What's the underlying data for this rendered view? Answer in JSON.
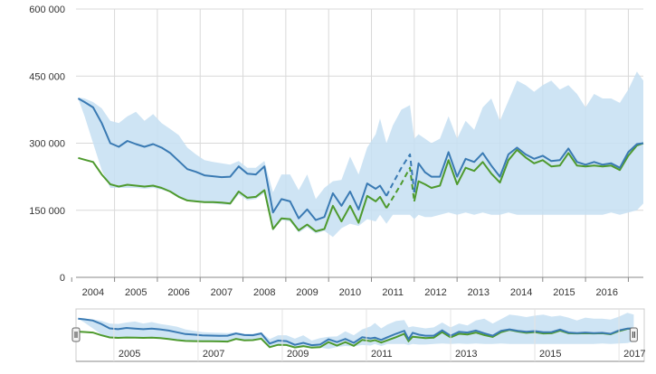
{
  "chart_data": {
    "type": "line",
    "title": "",
    "xlabel": "",
    "ylabel": "",
    "ylim": [
      0,
      600000
    ],
    "xlim": [
      2003.6,
      2016.85
    ],
    "y_ticks": [
      0,
      150000,
      300000,
      450000,
      600000
    ],
    "y_tick_labels": [
      "0",
      "150 000",
      "300 000",
      "450 000",
      "600 000"
    ],
    "x_ticks": [
      2004,
      2005,
      2006,
      2007,
      2008,
      2009,
      2010,
      2011,
      2012,
      2013,
      2014,
      2015,
      2016
    ],
    "x_tick_labels": [
      "2004",
      "2005",
      "2006",
      "2007",
      "2008",
      "2009",
      "2010",
      "2011",
      "2012",
      "2013",
      "2014",
      "2015",
      "2016"
    ],
    "grid": true,
    "legend": "none",
    "colors": {
      "upper_line": "#3a7ab3",
      "lower_line": "#4e9a2e",
      "band": "#c6dff2",
      "grid": "#d9d9d9",
      "axis": "#888888"
    },
    "dashed_range": [
      2010.7,
      2011.45
    ],
    "series": [
      {
        "x": [
          2003.65,
          2003.8,
          2004.0,
          2004.2,
          2004.4,
          2004.6,
          2004.8,
          2005.0,
          2005.2,
          2005.4,
          2005.6,
          2005.8,
          2006.0,
          2006.2,
          2006.4,
          2006.6,
          2006.8,
          2007.0,
          2007.2,
          2007.4,
          2007.6,
          2007.8,
          2008.0,
          2008.2,
          2008.4,
          2008.6,
          2008.8,
          2009.0,
          2009.2,
          2009.4,
          2009.6,
          2009.8,
          2010.0,
          2010.2,
          2010.4,
          2010.6,
          2010.7,
          2010.85,
          2011.0,
          2011.2,
          2011.4,
          2011.5,
          2011.6,
          2011.75,
          2011.9,
          2012.1,
          2012.3,
          2012.5,
          2012.7,
          2012.9,
          2013.1,
          2013.3,
          2013.5,
          2013.7,
          2013.9,
          2014.1,
          2014.3,
          2014.5,
          2014.7,
          2014.9,
          2015.1,
          2015.3,
          2015.5,
          2015.7,
          2015.9,
          2016.1,
          2016.3,
          2016.5,
          2016.7,
          2016.85
        ],
        "values": [
          400000,
          392000,
          380000,
          345000,
          300000,
          292000,
          305000,
          298000,
          292000,
          298000,
          290000,
          278000,
          260000,
          242000,
          236000,
          228000,
          226000,
          224000,
          225000,
          248000,
          232000,
          230000,
          248000,
          145000,
          175000,
          170000,
          132000,
          152000,
          128000,
          135000,
          188000,
          160000,
          192000,
          152000,
          210000,
          198000,
          205000,
          182000,
          210000,
          245000,
          275000,
          190000,
          255000,
          235000,
          225000,
          225000,
          280000,
          225000,
          265000,
          258000,
          278000,
          250000,
          225000,
          275000,
          290000,
          275000,
          265000,
          272000,
          260000,
          262000,
          288000,
          258000,
          252000,
          258000,
          252000,
          255000,
          245000,
          280000,
          298000,
          300000
        ]
      },
      {
        "x": [
          2003.65,
          2003.8,
          2004.0,
          2004.2,
          2004.4,
          2004.6,
          2004.8,
          2005.0,
          2005.2,
          2005.4,
          2005.6,
          2005.8,
          2006.0,
          2006.2,
          2006.4,
          2006.6,
          2006.8,
          2007.0,
          2007.2,
          2007.4,
          2007.6,
          2007.8,
          2008.0,
          2008.2,
          2008.4,
          2008.6,
          2008.8,
          2009.0,
          2009.2,
          2009.4,
          2009.6,
          2009.8,
          2010.0,
          2010.2,
          2010.4,
          2010.6,
          2010.7,
          2010.85,
          2011.0,
          2011.2,
          2011.4,
          2011.5,
          2011.6,
          2011.75,
          2011.9,
          2012.1,
          2012.3,
          2012.5,
          2012.7,
          2012.9,
          2013.1,
          2013.3,
          2013.5,
          2013.7,
          2013.9,
          2014.1,
          2014.3,
          2014.5,
          2014.7,
          2014.9,
          2015.1,
          2015.3,
          2015.5,
          2015.7,
          2015.9,
          2016.1,
          2016.3,
          2016.5,
          2016.7,
          2016.85
        ],
        "values": [
          267000,
          263000,
          258000,
          230000,
          208000,
          203000,
          207000,
          205000,
          203000,
          205000,
          200000,
          192000,
          180000,
          172000,
          170000,
          168000,
          168000,
          167000,
          165000,
          192000,
          178000,
          180000,
          195000,
          108000,
          132000,
          130000,
          105000,
          118000,
          103000,
          108000,
          160000,
          125000,
          160000,
          122000,
          182000,
          170000,
          180000,
          155000,
          178000,
          210000,
          245000,
          170000,
          215000,
          208000,
          200000,
          205000,
          262000,
          208000,
          245000,
          238000,
          258000,
          232000,
          212000,
          262000,
          285000,
          268000,
          255000,
          262000,
          248000,
          250000,
          278000,
          250000,
          248000,
          250000,
          248000,
          250000,
          240000,
          272000,
          295000,
          300000
        ]
      }
    ],
    "band": {
      "x": [
        2003.65,
        2003.8,
        2004.0,
        2004.2,
        2004.4,
        2004.6,
        2004.8,
        2005.0,
        2005.2,
        2005.4,
        2005.6,
        2005.8,
        2006.0,
        2006.2,
        2006.4,
        2006.6,
        2006.8,
        2007.0,
        2007.2,
        2007.4,
        2007.6,
        2007.8,
        2008.0,
        2008.2,
        2008.4,
        2008.6,
        2008.8,
        2009.0,
        2009.2,
        2009.4,
        2009.6,
        2009.8,
        2010.0,
        2010.2,
        2010.4,
        2010.6,
        2010.7,
        2010.85,
        2011.0,
        2011.2,
        2011.4,
        2011.5,
        2011.6,
        2011.75,
        2011.9,
        2012.1,
        2012.3,
        2012.5,
        2012.7,
        2012.9,
        2013.1,
        2013.3,
        2013.5,
        2013.7,
        2013.9,
        2014.1,
        2014.3,
        2014.5,
        2014.7,
        2014.9,
        2015.1,
        2015.3,
        2015.5,
        2015.7,
        2015.9,
        2016.1,
        2016.3,
        2016.5,
        2016.7,
        2016.85
      ],
      "high": [
        402000,
        400000,
        392000,
        378000,
        350000,
        345000,
        360000,
        370000,
        350000,
        365000,
        345000,
        332000,
        318000,
        290000,
        275000,
        262000,
        258000,
        255000,
        252000,
        260000,
        245000,
        245000,
        260000,
        190000,
        230000,
        230000,
        195000,
        230000,
        175000,
        200000,
        215000,
        218000,
        270000,
        230000,
        290000,
        320000,
        355000,
        300000,
        340000,
        375000,
        385000,
        310000,
        320000,
        310000,
        300000,
        310000,
        360000,
        310000,
        350000,
        330000,
        380000,
        400000,
        350000,
        395000,
        440000,
        430000,
        415000,
        430000,
        440000,
        420000,
        430000,
        410000,
        380000,
        410000,
        400000,
        400000,
        390000,
        420000,
        460000,
        440000
      ],
      "low": [
        400000,
        360000,
        300000,
        240000,
        200000,
        200000,
        200000,
        200000,
        198000,
        200000,
        196000,
        190000,
        178000,
        170000,
        168000,
        166000,
        165000,
        163000,
        162000,
        185000,
        172000,
        175000,
        188000,
        104000,
        128000,
        125000,
        100000,
        112000,
        98000,
        104000,
        90000,
        110000,
        120000,
        115000,
        130000,
        125000,
        140000,
        120000,
        140000,
        140000,
        140000,
        130000,
        140000,
        135000,
        135000,
        140000,
        145000,
        140000,
        145000,
        140000,
        145000,
        140000,
        140000,
        145000,
        140000,
        140000,
        140000,
        140000,
        140000,
        140000,
        140000,
        140000,
        140000,
        140000,
        140000,
        145000,
        140000,
        145000,
        150000,
        165000
      ]
    },
    "navigator": {
      "labels": [
        "2005",
        "2007",
        "2009",
        "2011",
        "2013",
        "2015",
        "2017"
      ],
      "label_years": [
        2005,
        2007,
        2009,
        2011,
        2013,
        2015,
        2017
      ],
      "xlim": [
        2003.6,
        2017.1
      ],
      "selected_range": [
        2003.6,
        2016.85
      ]
    }
  }
}
